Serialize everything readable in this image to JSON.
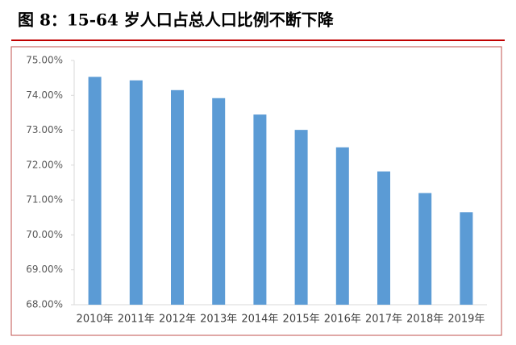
{
  "chart_data": {
    "type": "bar",
    "title": "图 8：15-64 岁人口占总人口比例不断下降",
    "categories": [
      "2010年",
      "2011年",
      "2012年",
      "2013年",
      "2014年",
      "2015年",
      "2016年",
      "2017年",
      "2018年",
      "2019年"
    ],
    "values": [
      74.53,
      74.43,
      74.15,
      73.92,
      73.45,
      73.01,
      72.51,
      71.82,
      71.2,
      70.65
    ],
    "color": "#5b9bd5",
    "ylim": [
      68,
      75
    ],
    "yticks": [
      {
        "value": 68,
        "label": "68.00%"
      },
      {
        "value": 69,
        "label": "69.00%"
      },
      {
        "value": 70,
        "label": "70.00%"
      },
      {
        "value": 71,
        "label": "71.00%"
      },
      {
        "value": 72,
        "label": "72.00%"
      },
      {
        "value": 73,
        "label": "73.00%"
      },
      {
        "value": 74,
        "label": "74.00%"
      },
      {
        "value": 75,
        "label": "75.00%"
      }
    ],
    "grid": false
  }
}
